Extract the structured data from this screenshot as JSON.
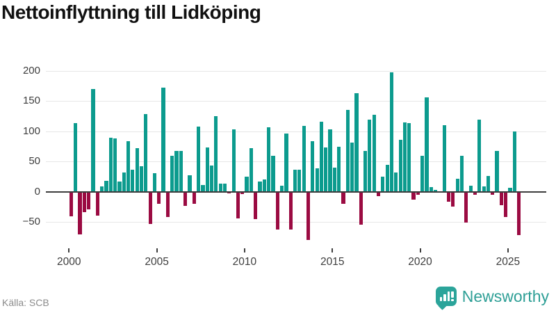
{
  "title": "Nettoinflyttning till Lidköping",
  "source": "Källa: SCB",
  "brand": {
    "name": "Newsworthy"
  },
  "colors": {
    "positive_bar": "#0c9b8e",
    "negative_bar": "#9b0b42",
    "axis_line": "#3c3c3c",
    "grid": "#e7e7e7",
    "tick_text": "#3d3d3d",
    "brand_teal": "#2ba49a"
  },
  "chart_data": {
    "type": "bar",
    "title": "Nettoinflyttning till Lidköping",
    "frequency": "quarterly",
    "start_quarter": "2000 Q1",
    "end_quarter": "2025 Q3",
    "values": [
      -41,
      113,
      -71,
      -34,
      -29,
      170,
      -39,
      9,
      18,
      89,
      88,
      17,
      32,
      83,
      36,
      72,
      42,
      128,
      -53,
      31,
      -20,
      172,
      -42,
      59,
      67,
      67,
      -23,
      27,
      -20,
      108,
      11,
      73,
      43,
      125,
      13,
      14,
      -3,
      103,
      -44,
      -4,
      25,
      72,
      -45,
      17,
      20,
      106,
      59,
      -63,
      10,
      96,
      -63,
      37,
      37,
      109,
      -80,
      83,
      39,
      116,
      73,
      103,
      40,
      74,
      -20,
      135,
      81,
      163,
      -54,
      68,
      119,
      127,
      -7,
      25,
      44,
      197,
      32,
      86,
      115,
      114,
      -13,
      -5,
      59,
      156,
      8,
      3,
      0,
      110,
      -16,
      -24,
      22,
      60,
      -51,
      10,
      -5,
      119,
      9,
      26,
      -5,
      67,
      -22,
      -42,
      6,
      100,
      -72
    ],
    "xticks": [
      {
        "label": "2000",
        "year": 2000
      },
      {
        "label": "2005",
        "year": 2005
      },
      {
        "label": "2010",
        "year": 2010
      },
      {
        "label": "2015",
        "year": 2015
      },
      {
        "label": "2020",
        "year": 2020
      },
      {
        "label": "2025",
        "year": 2025
      }
    ],
    "yticks": [
      {
        "label": "200",
        "value": 200
      },
      {
        "label": "150",
        "value": 150
      },
      {
        "label": "100",
        "value": 100
      },
      {
        "label": "50",
        "value": 50
      },
      {
        "label": "0",
        "value": 0
      },
      {
        "label": "−50",
        "value": -50
      }
    ],
    "ylim": [
      -88,
      225
    ],
    "grid": true,
    "legend": false,
    "positive_color": "#0c9b8e",
    "negative_color": "#9b0b42"
  }
}
